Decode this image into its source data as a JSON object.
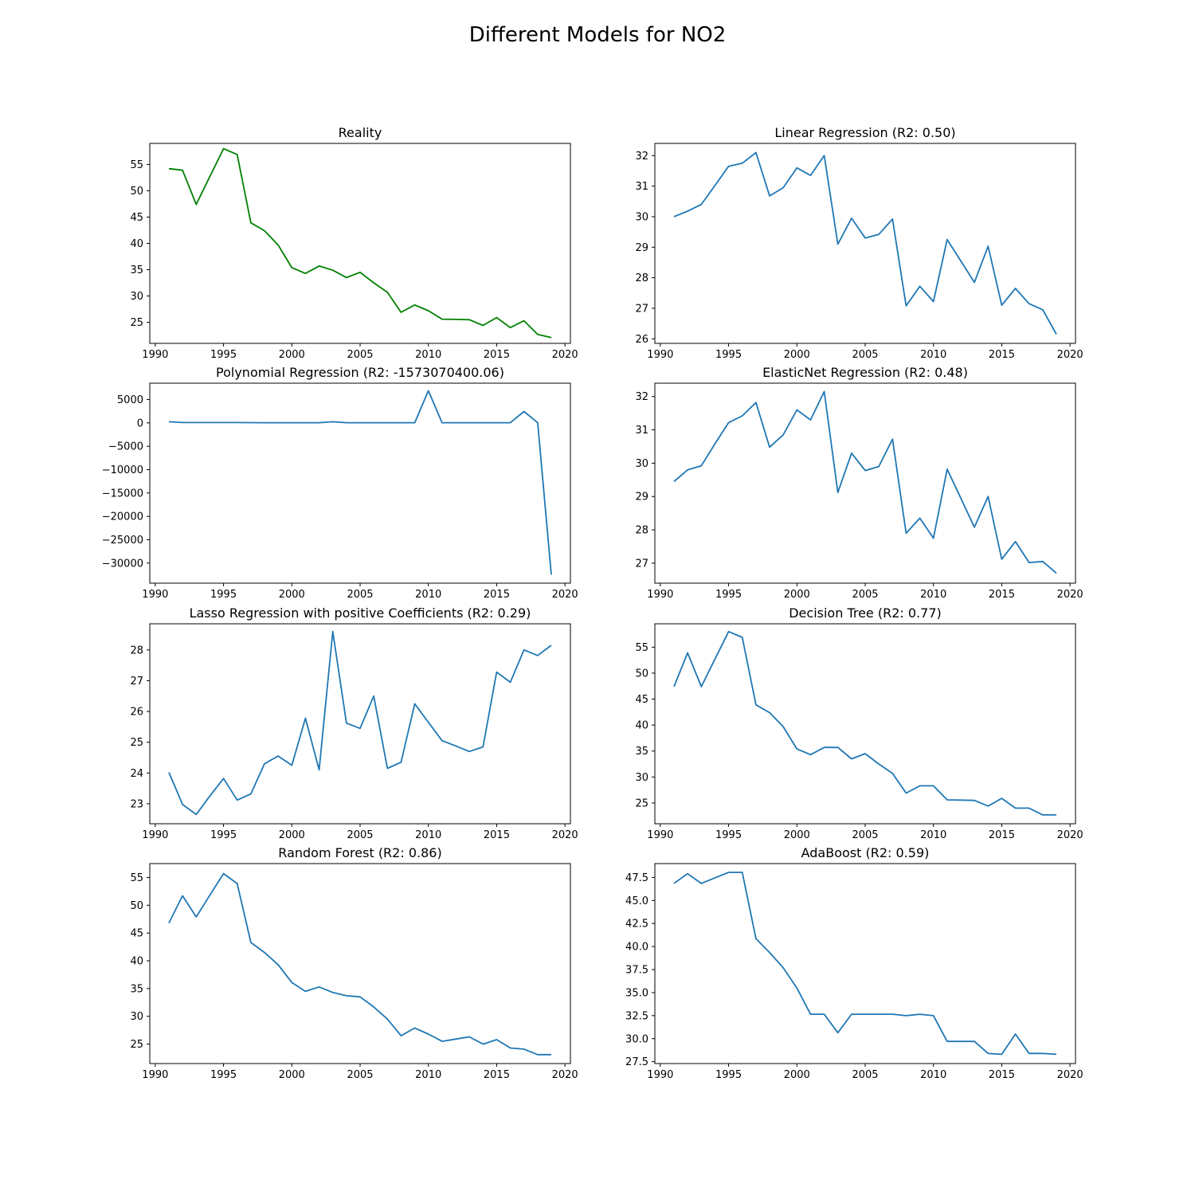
{
  "figure": {
    "title": "Different Models for NO2"
  },
  "colors": {
    "reality": "#008000",
    "model": "#1f77b4"
  },
  "x_years": [
    1991,
    1992,
    1993,
    1994,
    1995,
    1996,
    1997,
    1998,
    1999,
    2000,
    2001,
    2002,
    2003,
    2004,
    2005,
    2006,
    2007,
    2008,
    2009,
    2010,
    2011,
    2012,
    2013,
    2014,
    2015,
    2016,
    2017,
    2018,
    2019
  ],
  "chart_data": [
    {
      "type": "line",
      "title": "Reality",
      "color": "reality",
      "xlim": [
        1989.6,
        2020.4
      ],
      "ylim": [
        21.0,
        59.0
      ],
      "xticks": [
        1990,
        1995,
        2000,
        2005,
        2010,
        2015,
        2020
      ],
      "yticks": [
        25,
        30,
        35,
        40,
        45,
        50,
        55
      ],
      "ytick_labels": [
        "25",
        "30",
        "35",
        "40",
        "45",
        "50",
        "55"
      ],
      "values": [
        54.2,
        53.9,
        47.4,
        52.7,
        58.0,
        56.9,
        43.9,
        42.4,
        39.7,
        35.4,
        34.3,
        35.7,
        34.9,
        33.5,
        34.5,
        32.5,
        30.7,
        26.9,
        28.3,
        27.2,
        25.6,
        25.55,
        25.5,
        24.4,
        25.9,
        24.0,
        25.3,
        22.7,
        22.1
      ]
    },
    {
      "type": "line",
      "title": "Linear Regression (R2: 0.50)",
      "color": "model",
      "xlim": [
        1989.6,
        2020.4
      ],
      "ylim": [
        25.85,
        32.4
      ],
      "xticks": [
        1990,
        1995,
        2000,
        2005,
        2010,
        2015,
        2020
      ],
      "yticks": [
        26,
        27,
        28,
        29,
        30,
        31,
        32
      ],
      "ytick_labels": [
        "26",
        "27",
        "28",
        "29",
        "30",
        "31",
        "32"
      ],
      "values": [
        30.0,
        30.18,
        30.4,
        31.02,
        31.65,
        31.75,
        32.1,
        30.68,
        30.95,
        31.6,
        31.35,
        32.0,
        29.1,
        29.95,
        29.3,
        29.42,
        29.92,
        27.08,
        27.72,
        27.22,
        29.25,
        28.55,
        27.85,
        29.03,
        27.1,
        27.65,
        27.15,
        26.95,
        26.15
      ]
    },
    {
      "type": "line",
      "title": "Polynomial Regression (R2: -1573070400.06)",
      "color": "model",
      "xlim": [
        1989.6,
        2020.4
      ],
      "ylim": [
        -34300,
        8500
      ],
      "xticks": [
        1990,
        1995,
        2000,
        2005,
        2010,
        2015,
        2020
      ],
      "yticks": [
        -30000,
        -25000,
        -20000,
        -15000,
        -10000,
        -5000,
        0,
        5000
      ],
      "ytick_labels": [
        "−30000",
        "−25000",
        "−20000",
        "−15000",
        "−10000",
        "−5000",
        "0",
        "5000"
      ],
      "values": [
        250,
        80,
        80,
        80,
        80,
        80,
        60,
        50,
        50,
        40,
        40,
        40,
        250,
        50,
        50,
        50,
        50,
        50,
        50,
        6900,
        40,
        40,
        40,
        40,
        40,
        40,
        2450,
        50,
        -32500
      ]
    },
    {
      "type": "line",
      "title": "ElasticNet Regression (R2: 0.48)",
      "color": "model",
      "xlim": [
        1989.6,
        2020.4
      ],
      "ylim": [
        26.4,
        32.4
      ],
      "xticks": [
        1990,
        1995,
        2000,
        2005,
        2010,
        2015,
        2020
      ],
      "yticks": [
        27,
        28,
        29,
        30,
        31,
        32
      ],
      "ytick_labels": [
        "27",
        "28",
        "29",
        "30",
        "31",
        "32"
      ],
      "values": [
        29.45,
        29.8,
        29.92,
        30.58,
        31.22,
        31.42,
        31.82,
        30.48,
        30.85,
        31.6,
        31.3,
        32.15,
        29.12,
        30.3,
        29.78,
        29.9,
        30.72,
        27.9,
        28.35,
        27.75,
        29.82,
        28.95,
        28.08,
        29.0,
        27.12,
        27.65,
        27.02,
        27.05,
        26.7
      ]
    },
    {
      "type": "line",
      "title": "Lasso Regression with positive Coefficients (R2: 0.29)",
      "color": "model",
      "xlim": [
        1989.6,
        2020.4
      ],
      "ylim": [
        22.35,
        28.85
      ],
      "xticks": [
        1990,
        1995,
        2000,
        2005,
        2010,
        2015,
        2020
      ],
      "yticks": [
        23,
        24,
        25,
        26,
        27,
        28
      ],
      "ytick_labels": [
        "23",
        "24",
        "25",
        "26",
        "27",
        "28"
      ],
      "values": [
        24.02,
        22.98,
        22.65,
        23.25,
        23.82,
        23.12,
        23.32,
        24.3,
        24.55,
        24.25,
        25.78,
        24.1,
        28.6,
        25.62,
        25.45,
        26.5,
        24.15,
        24.35,
        26.25,
        25.65,
        25.05,
        24.88,
        24.7,
        24.85,
        27.28,
        26.95,
        28.0,
        27.82,
        28.15
      ]
    },
    {
      "type": "line",
      "title": "Decision Tree (R2: 0.77)",
      "color": "model",
      "xlim": [
        1989.6,
        2020.4
      ],
      "ylim": [
        21.0,
        59.5
      ],
      "xticks": [
        1990,
        1995,
        2000,
        2005,
        2010,
        2015,
        2020
      ],
      "yticks": [
        25,
        30,
        35,
        40,
        45,
        50,
        55
      ],
      "ytick_labels": [
        "25",
        "30",
        "35",
        "40",
        "45",
        "50",
        "55"
      ],
      "values": [
        47.4,
        53.9,
        47.4,
        52.7,
        58.0,
        56.9,
        43.9,
        42.4,
        39.7,
        35.4,
        34.3,
        35.7,
        35.7,
        33.5,
        34.5,
        32.5,
        30.7,
        26.9,
        28.3,
        28.3,
        25.6,
        25.55,
        25.5,
        24.4,
        25.9,
        24.0,
        24.0,
        22.7,
        22.7
      ]
    },
    {
      "type": "line",
      "title": "Random Forest (R2: 0.86)",
      "color": "model",
      "xlim": [
        1989.6,
        2020.4
      ],
      "ylim": [
        21.5,
        57.5
      ],
      "xticks": [
        1990,
        1995,
        2000,
        2005,
        2010,
        2015,
        2020
      ],
      "yticks": [
        25,
        30,
        35,
        40,
        45,
        50,
        55
      ],
      "ytick_labels": [
        "25",
        "30",
        "35",
        "40",
        "45",
        "50",
        "55"
      ],
      "values": [
        46.8,
        51.7,
        47.9,
        51.8,
        55.7,
        53.9,
        43.3,
        41.5,
        39.3,
        36.1,
        34.5,
        35.3,
        34.3,
        33.7,
        33.5,
        31.7,
        29.5,
        26.5,
        27.9,
        26.8,
        25.5,
        25.9,
        26.3,
        25.0,
        25.8,
        24.3,
        24.1,
        23.1,
        23.1
      ]
    },
    {
      "type": "line",
      "title": "AdaBoost (R2: 0.59)",
      "color": "model",
      "xlim": [
        1989.6,
        2020.4
      ],
      "ylim": [
        27.3,
        49.0
      ],
      "xticks": [
        1990,
        1995,
        2000,
        2005,
        2010,
        2015,
        2020
      ],
      "yticks": [
        27.5,
        30.0,
        32.5,
        35.0,
        37.5,
        40.0,
        42.5,
        45.0,
        47.5
      ],
      "ytick_labels": [
        "27.5",
        "30.0",
        "32.5",
        "35.0",
        "37.5",
        "40.0",
        "42.5",
        "45.0",
        "47.5"
      ],
      "values": [
        46.85,
        47.9,
        46.85,
        47.45,
        48.05,
        48.05,
        40.85,
        39.35,
        37.7,
        35.5,
        32.65,
        32.65,
        30.65,
        32.65,
        32.65,
        32.65,
        32.65,
        32.5,
        32.65,
        32.5,
        29.7,
        29.7,
        29.7,
        28.4,
        28.3,
        30.5,
        28.4,
        28.4,
        28.3
      ]
    }
  ]
}
